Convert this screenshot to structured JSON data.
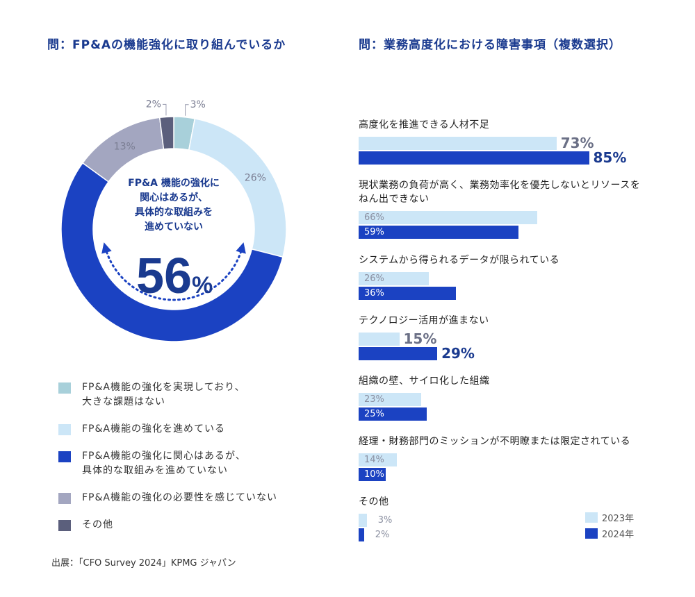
{
  "left_title": "問：FP&Aの機能強化に取り組んでいるか",
  "right_title": "問：業務高度化における障害事項（複数選択）",
  "center_label": [
    "FP&A 機能の強化に",
    "関心はあるが、",
    "具体的な取組みを",
    "進めていない"
  ],
  "center_value": "56",
  "center_unit": "%",
  "legend": [
    {
      "lines": [
        "FP&A機能の強化を実現しており、",
        "大きな課題はない"
      ],
      "color": "#a8d0da"
    },
    {
      "lines": [
        "FP&A機能の強化を進めている"
      ],
      "color": "#cce6f7"
    },
    {
      "lines": [
        "FP&A機能の強化に関心はあるが、",
        "具体的な取組みを進めていない"
      ],
      "color": "#1b42c2"
    },
    {
      "lines": [
        "FP&A機能の強化の必要性を感じていない"
      ],
      "color": "#a3a6c0"
    },
    {
      "lines": [
        "その他"
      ],
      "color": "#5b5f7c"
    }
  ],
  "source": "出展：「CFO Survey 2024」KPMG ジャパン",
  "chart_data": [
    {
      "type": "pie",
      "title": "問：FP&Aの機能強化に取り組んでいるか",
      "categories": [
        "FP&A機能の強化を実現しており、大きな課題はない",
        "FP&A機能の強化を進めている",
        "FP&A機能の強化に関心はあるが、具体的な取組みを進めていない",
        "FP&A機能の強化の必要性を感じていない",
        "その他"
      ],
      "values": [
        3,
        26,
        56,
        13,
        2
      ],
      "labels": [
        "3%",
        "26%",
        "",
        "13%",
        "2%"
      ],
      "colors": [
        "#a8d0da",
        "#cce6f7",
        "#1b42c2",
        "#a3a6c0",
        "#5b5f7c"
      ]
    },
    {
      "type": "bar",
      "orientation": "horizontal",
      "title": "問：業務高度化における障害事項（複数選択）",
      "categories": [
        "高度化を推進できる人材不足",
        "現状業務の負荷が高く、業務効率化を優先しないとリソースをねん出できない",
        "システムから得られるデータが限られている",
        "テクノロジー活用が進まない",
        "組織の壁、サイロ化した組織",
        "経理・財務部門のミッションが不明瞭または限定されている",
        "その他"
      ],
      "label_lines": [
        [
          "高度化を推進できる人材不足"
        ],
        [
          "現状業務の負荷が高く、業務効率化を優先しないとリソースを",
          "ねん出できない"
        ],
        [
          "システムから得られるデータが限られている"
        ],
        [
          "テクノロジー活用が進まない"
        ],
        [
          "組織の壁、サイロ化した組織"
        ],
        [
          "経理・財務部門のミッションが不明瞭または限定されている"
        ],
        [
          "その他"
        ]
      ],
      "series": [
        {
          "name": "2023年",
          "values": [
            73,
            66,
            26,
            15,
            23,
            14,
            3
          ],
          "color": "#cce6f7"
        },
        {
          "name": "2024年",
          "values": [
            85,
            59,
            36,
            29,
            25,
            10,
            2
          ],
          "color": "#1b42c2"
        }
      ],
      "emphasized": [
        0,
        3
      ],
      "unit": "%",
      "xlim": [
        0,
        100
      ]
    }
  ]
}
